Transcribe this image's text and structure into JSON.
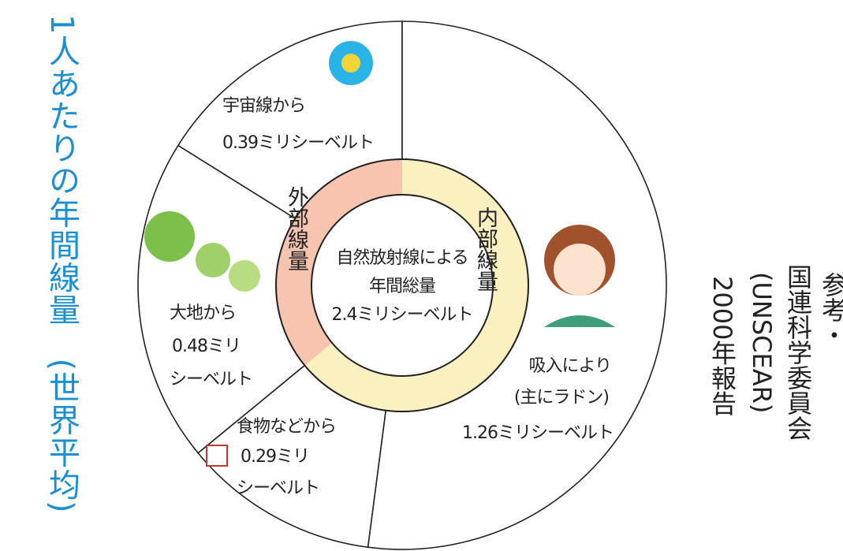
{
  "title": "1人あたりの年間線量　(世界平均)",
  "note": [
    "参考・",
    "国連科学委員会",
    "(UNSCEAR)",
    "2000年報告"
  ],
  "chart_data": {
    "type": "pie",
    "center_label": [
      "自然放射線による",
      "年間総量",
      "2.4ミリシーベルト"
    ],
    "series": [
      {
        "name": "外部線量",
        "color": "#f7c4b0",
        "categories": [
          [
            "宇宙線から"
          ],
          [
            "大地から"
          ]
        ],
        "values": [
          0.39,
          0.48
        ],
        "value_labels": [
          [
            "0.39ミリシーベルト"
          ],
          [
            "0.48ミリ",
            "シーベルト"
          ]
        ]
      },
      {
        "name": "内部線量",
        "color": "#fbf0bf",
        "categories": [
          [
            "食物などから"
          ],
          [
            "吸入により",
            "(主にラドン)"
          ]
        ],
        "values": [
          0.29,
          1.26
        ],
        "value_labels": [
          [
            "0.29ミリ",
            "シーベルト"
          ],
          [
            "1.26ミリシーベルト"
          ]
        ]
      }
    ]
  }
}
